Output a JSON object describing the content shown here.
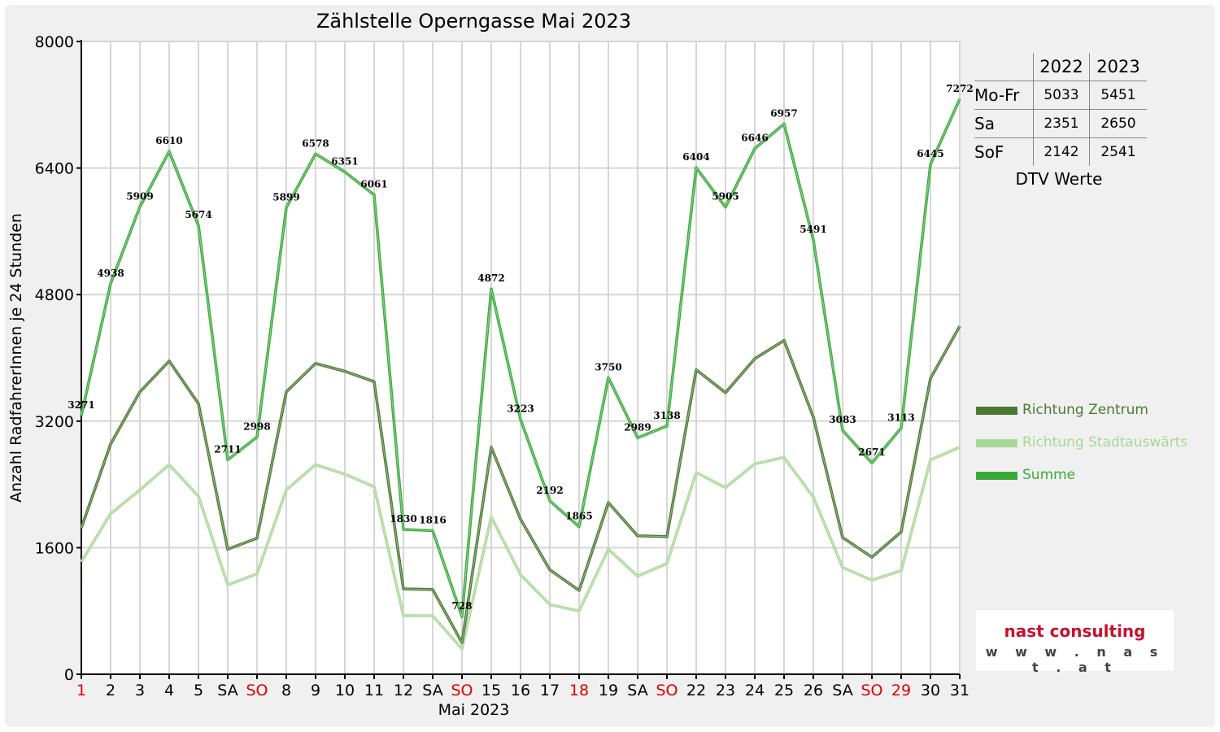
{
  "chart_data": {
    "type": "line",
    "title": "Zählstelle Operngasse Mai 2023",
    "xlabel": "Mai 2023",
    "ylabel": "Anzahl RadfahrerInnen je 24 Stunden",
    "ylim": [
      0,
      8000
    ],
    "yticks": [
      "0",
      "1600",
      "3200",
      "4800",
      "6400",
      "8000"
    ],
    "grid": true,
    "legend_position": "right",
    "categories": [
      "1",
      "2",
      "3",
      "4",
      "5",
      "SA",
      "SO",
      "8",
      "9",
      "10",
      "11",
      "12",
      "SA",
      "SO",
      "15",
      "16",
      "17",
      "18",
      "19",
      "SA",
      "SO",
      "22",
      "23",
      "24",
      "25",
      "26",
      "SA",
      "SO",
      "29",
      "30",
      "31"
    ],
    "holiday_flags": [
      true,
      false,
      false,
      false,
      false,
      false,
      true,
      false,
      false,
      false,
      false,
      false,
      false,
      true,
      false,
      false,
      false,
      true,
      false,
      false,
      true,
      false,
      false,
      false,
      false,
      false,
      false,
      true,
      true,
      false,
      false
    ],
    "holiday_color": "#e00000",
    "series": [
      {
        "name": "Richtung Zentrum",
        "color": "#4a7a32",
        "values": [
          1850,
          2910,
          3570,
          3960,
          3420,
          1580,
          1720,
          3570,
          3930,
          3830,
          3700,
          1080,
          1070,
          400,
          2870,
          1960,
          1320,
          1060,
          2170,
          1750,
          1740,
          3850,
          3560,
          3990,
          4220,
          3250,
          1730,
          1480,
          1800,
          3740,
          4400
        ]
      },
      {
        "name": "Richtung Stadtauswärts",
        "color": "#a8d896",
        "values": [
          1420,
          2030,
          2330,
          2650,
          2250,
          1130,
          1270,
          2330,
          2650,
          2530,
          2370,
          740,
          740,
          320,
          1990,
          1260,
          880,
          800,
          1580,
          1240,
          1400,
          2550,
          2360,
          2660,
          2740,
          2240,
          1350,
          1190,
          1310,
          2710,
          2870
        ]
      },
      {
        "name": "Summe",
        "color": "#3aaa3a",
        "values": [
          3271,
          4938,
          5909,
          6610,
          5674,
          2711,
          2998,
          5899,
          6578,
          6351,
          6061,
          1830,
          1816,
          728,
          4872,
          3223,
          2192,
          1865,
          3750,
          2989,
          3138,
          6404,
          5905,
          6646,
          6957,
          5491,
          3083,
          2671,
          3113,
          6445,
          7272
        ]
      }
    ],
    "data_labels": [
      "3271",
      "4938",
      "5909",
      "6610",
      "5674",
      "2711",
      "2998",
      "5899",
      "6578",
      "6351",
      "6061",
      "1830",
      "1816",
      "728",
      "4872",
      "3223",
      "2192",
      "1865",
      "3750",
      "2989",
      "3138",
      "6404",
      "5905",
      "6646",
      "6957",
      "5491",
      "3083",
      "2671",
      "3113",
      "6445",
      "7272"
    ]
  },
  "dtv": {
    "headers": [
      "",
      "2022",
      "2023"
    ],
    "rows": [
      {
        "label": "Mo-Fr",
        "v2022": "5033",
        "v2023": "5451"
      },
      {
        "label": "Sa",
        "v2022": "2351",
        "v2023": "2650"
      },
      {
        "label": "SoF",
        "v2022": "2142",
        "v2023": "2541"
      }
    ],
    "caption": "DTV Werte"
  },
  "logo": {
    "name": "nast consulting",
    "url": "w w w . n a s t . a t"
  }
}
